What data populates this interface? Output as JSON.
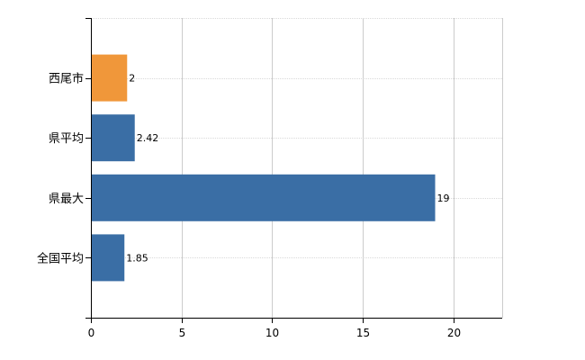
{
  "chart_data": {
    "type": "bar",
    "orientation": "horizontal",
    "categories": [
      "西尾市",
      "県平均",
      "県最大",
      "全国平均"
    ],
    "values": [
      2,
      2.42,
      19,
      1.85
    ],
    "value_labels": [
      "2",
      "2.42",
      "19",
      "1.85"
    ],
    "colors": [
      "#f0973a",
      "#3a6ea5",
      "#3a6ea5",
      "#3a6ea5"
    ],
    "x_ticks": [
      "0",
      "5",
      "10",
      "15",
      "20"
    ],
    "xlim": [
      0,
      22.7
    ],
    "grid": true,
    "title": "",
    "xlabel": "",
    "ylabel": ""
  }
}
